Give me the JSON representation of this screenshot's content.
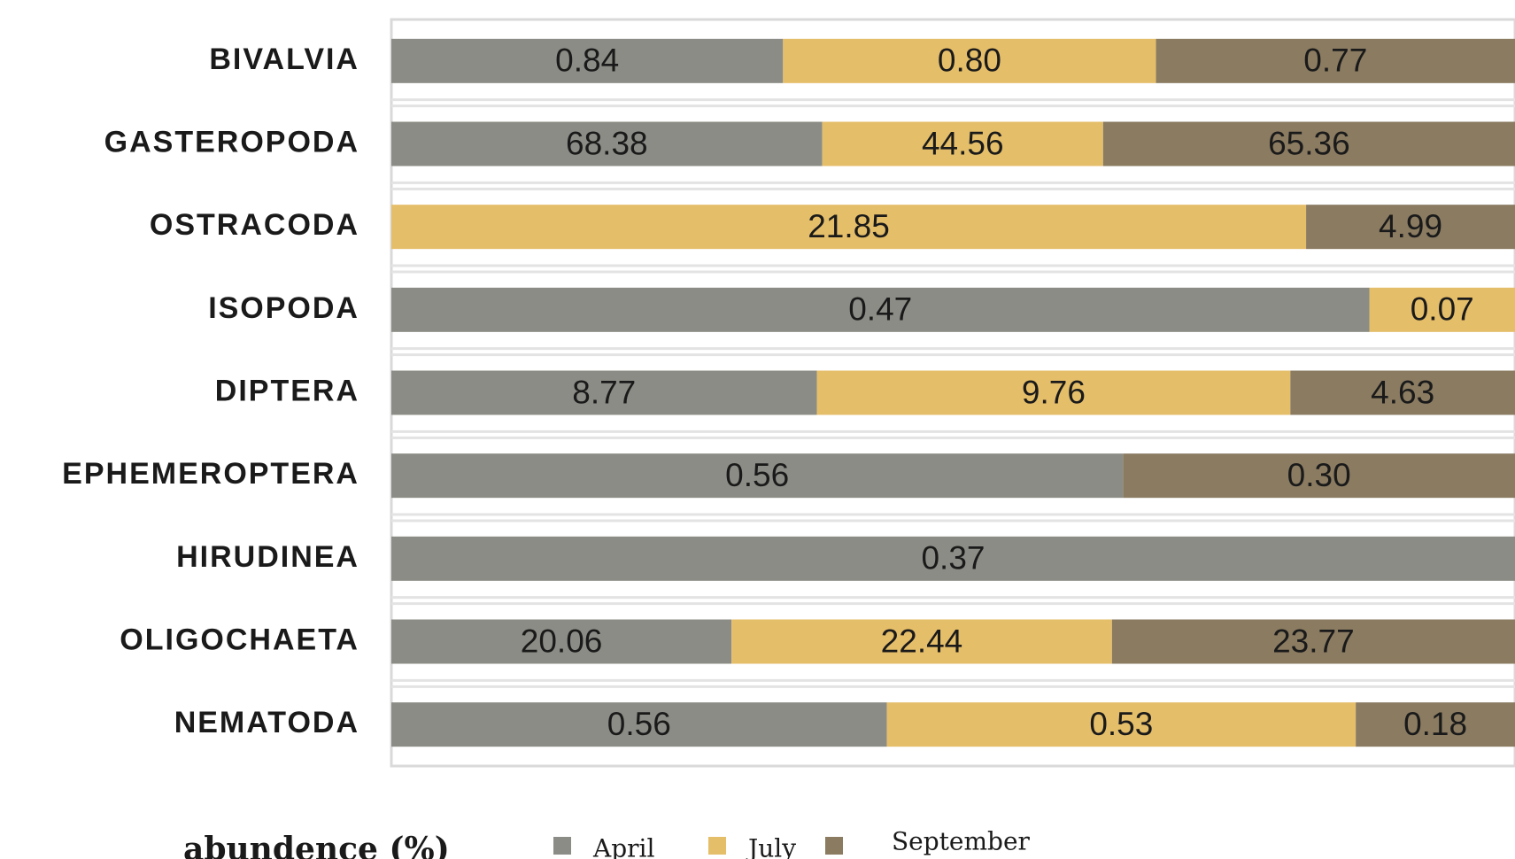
{
  "chart_data": {
    "type": "stacked_bar_100",
    "orientation": "horizontal",
    "x_label": "abundence (%)",
    "categories": [
      "BIVALVIA",
      "GASTEROPODA",
      "OSTRACODA",
      "ISOPODA",
      "DIPTERA",
      "EPHEMEROPTERA",
      "HIRUDINEA",
      "OLIGOCHAETA",
      "NEMATODA"
    ],
    "series": [
      {
        "name": "April",
        "color": "#8c8c86",
        "values": [
          0.84,
          68.38,
          null,
          0.47,
          8.77,
          0.56,
          0.37,
          20.06,
          0.56
        ],
        "value_labels": [
          "0.84",
          "68.38",
          null,
          "0.47",
          "8.77",
          "0.56",
          "0.37",
          "20.06",
          "0.56"
        ]
      },
      {
        "name": "July",
        "color": "#e5be69",
        "values": [
          0.8,
          44.56,
          21.85,
          0.07,
          9.76,
          null,
          null,
          22.44,
          0.53
        ],
        "value_labels": [
          "0.80",
          "44.56",
          "21.85",
          "0.07",
          "9.76",
          null,
          null,
          "22.44",
          "0.53"
        ]
      },
      {
        "name": "September",
        "color": "#8a7b61",
        "values": [
          0.77,
          65.36,
          4.99,
          null,
          4.63,
          0.3,
          null,
          23.77,
          0.18
        ],
        "value_labels": [
          "0.77",
          "65.36",
          "4.99",
          null,
          "4.63",
          "0.30",
          null,
          "23.77",
          "0.18"
        ]
      }
    ],
    "legend": "bottom"
  }
}
